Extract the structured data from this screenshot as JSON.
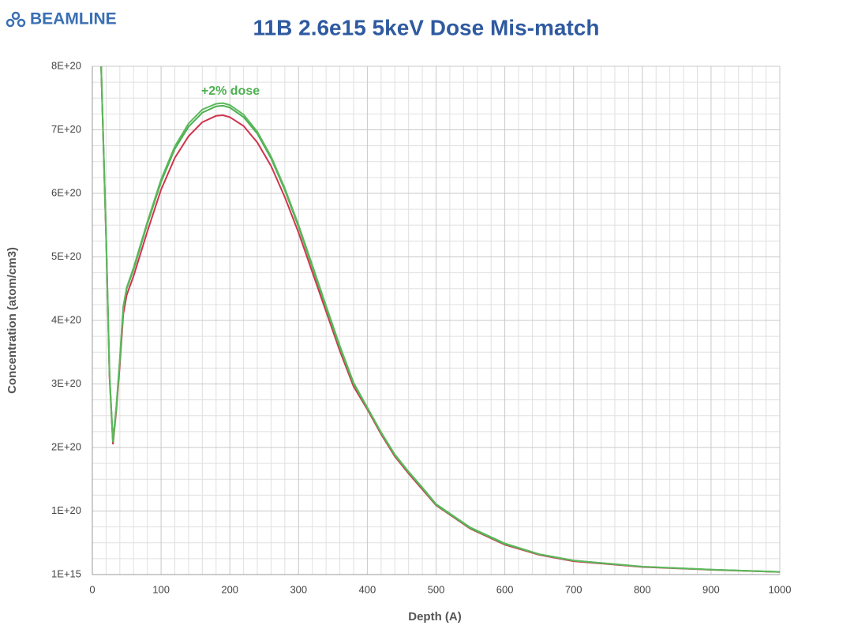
{
  "brand": "BEAMLINE",
  "chart_data": {
    "type": "line",
    "title": "11B 2.6e15 5keV Dose Mis-match",
    "xlabel": "Depth (A)",
    "ylabel": "Concentration (atom/cm3)",
    "annotation": "+2% dose",
    "x": [
      12,
      20,
      25,
      30,
      35,
      40,
      45,
      50,
      60,
      80,
      100,
      120,
      140,
      160,
      180,
      190,
      200,
      220,
      240,
      260,
      280,
      300,
      320,
      340,
      360,
      380,
      400,
      420,
      440,
      460,
      480,
      500,
      550,
      600,
      650,
      700,
      800,
      900,
      1000
    ],
    "series": [
      {
        "color": "#d0344e",
        "values": [
          8.3e+20,
          5.3e+20,
          3.1e+20,
          2.05e+20,
          2.6e+20,
          3.3e+20,
          4.1e+20,
          4.4e+20,
          4.7e+20,
          5.4e+20,
          6.06e+20,
          6.56e+20,
          6.9e+20,
          7.12e+20,
          7.22e+20,
          7.23e+20,
          7.2e+20,
          7.06e+20,
          6.8e+20,
          6.43e+20,
          5.94e+20,
          5.38e+20,
          4.76e+20,
          4.14e+20,
          3.52e+20,
          2.96e+20,
          2.6e+20,
          2.21e+20,
          1.86e+20,
          1.59e+20,
          1.34e+20,
          1.09e+20,
          7.2e+19,
          4.7e+19,
          3.1e+19,
          2.1e+19,
          1.2e+19,
          7.5e+18,
          4e+18
        ]
      },
      {
        "color": "#4caf50",
        "values": [
          8.3e+20,
          5.35e+20,
          3.15e+20,
          2.08e+20,
          2.65e+20,
          3.38e+20,
          4.2e+20,
          4.5e+20,
          4.8e+20,
          5.52e+20,
          6.18e+20,
          6.7e+20,
          7.05e+20,
          7.27e+20,
          7.37e+20,
          7.38e+20,
          7.35e+20,
          7.2e+20,
          6.94e+20,
          6.55e+20,
          6.05e+20,
          5.47e+20,
          4.84e+20,
          4.2e+20,
          3.57e+20,
          3e+20,
          2.62e+20,
          2.23e+20,
          1.88e+20,
          1.61e+20,
          1.36e+20,
          1.1e+20,
          7.3e+19,
          4.8e+19,
          3.2e+19,
          2.2e+19,
          1.25e+19,
          7.8e+18,
          4.2e+18
        ]
      },
      {
        "color": "#5cb85c",
        "values": [
          8.3e+20,
          5.35e+20,
          3.15e+20,
          2.1e+20,
          2.66e+20,
          3.4e+20,
          4.22e+20,
          4.52e+20,
          4.83e+20,
          5.55e+20,
          6.22e+20,
          6.74e+20,
          7.1e+20,
          7.32e+20,
          7.41e+20,
          7.42e+20,
          7.39e+20,
          7.24e+20,
          6.97e+20,
          6.58e+20,
          6.08e+20,
          5.5e+20,
          4.87e+20,
          4.23e+20,
          3.6e+20,
          3.02e+20,
          2.63e+20,
          2.24e+20,
          1.89e+20,
          1.62e+20,
          1.37e+20,
          1.11e+20,
          7.4e+19,
          4.9e+19,
          3.2e+19,
          2.2e+19,
          1.25e+19,
          7.8e+18,
          4.2e+18
        ]
      }
    ],
    "xlim": [
      0,
      1000
    ],
    "xticks": [
      0,
      100,
      200,
      300,
      400,
      500,
      600,
      700,
      800,
      900,
      1000
    ],
    "ylim": [
      1000000000000000.0,
      8e+20
    ],
    "yticks": [
      {
        "value": 1000000000000000.0,
        "label": "1E+15"
      },
      {
        "value": 1e+20,
        "label": "1E+20"
      },
      {
        "value": 2e+20,
        "label": "2E+20"
      },
      {
        "value": 3e+20,
        "label": "3E+20"
      },
      {
        "value": 4e+20,
        "label": "4E+20"
      },
      {
        "value": 5e+20,
        "label": "5E+20"
      },
      {
        "value": 6e+20,
        "label": "6E+20"
      },
      {
        "value": 7e+20,
        "label": "7E+20"
      },
      {
        "value": 8e+20,
        "label": "8E+20"
      }
    ],
    "grid": true
  }
}
